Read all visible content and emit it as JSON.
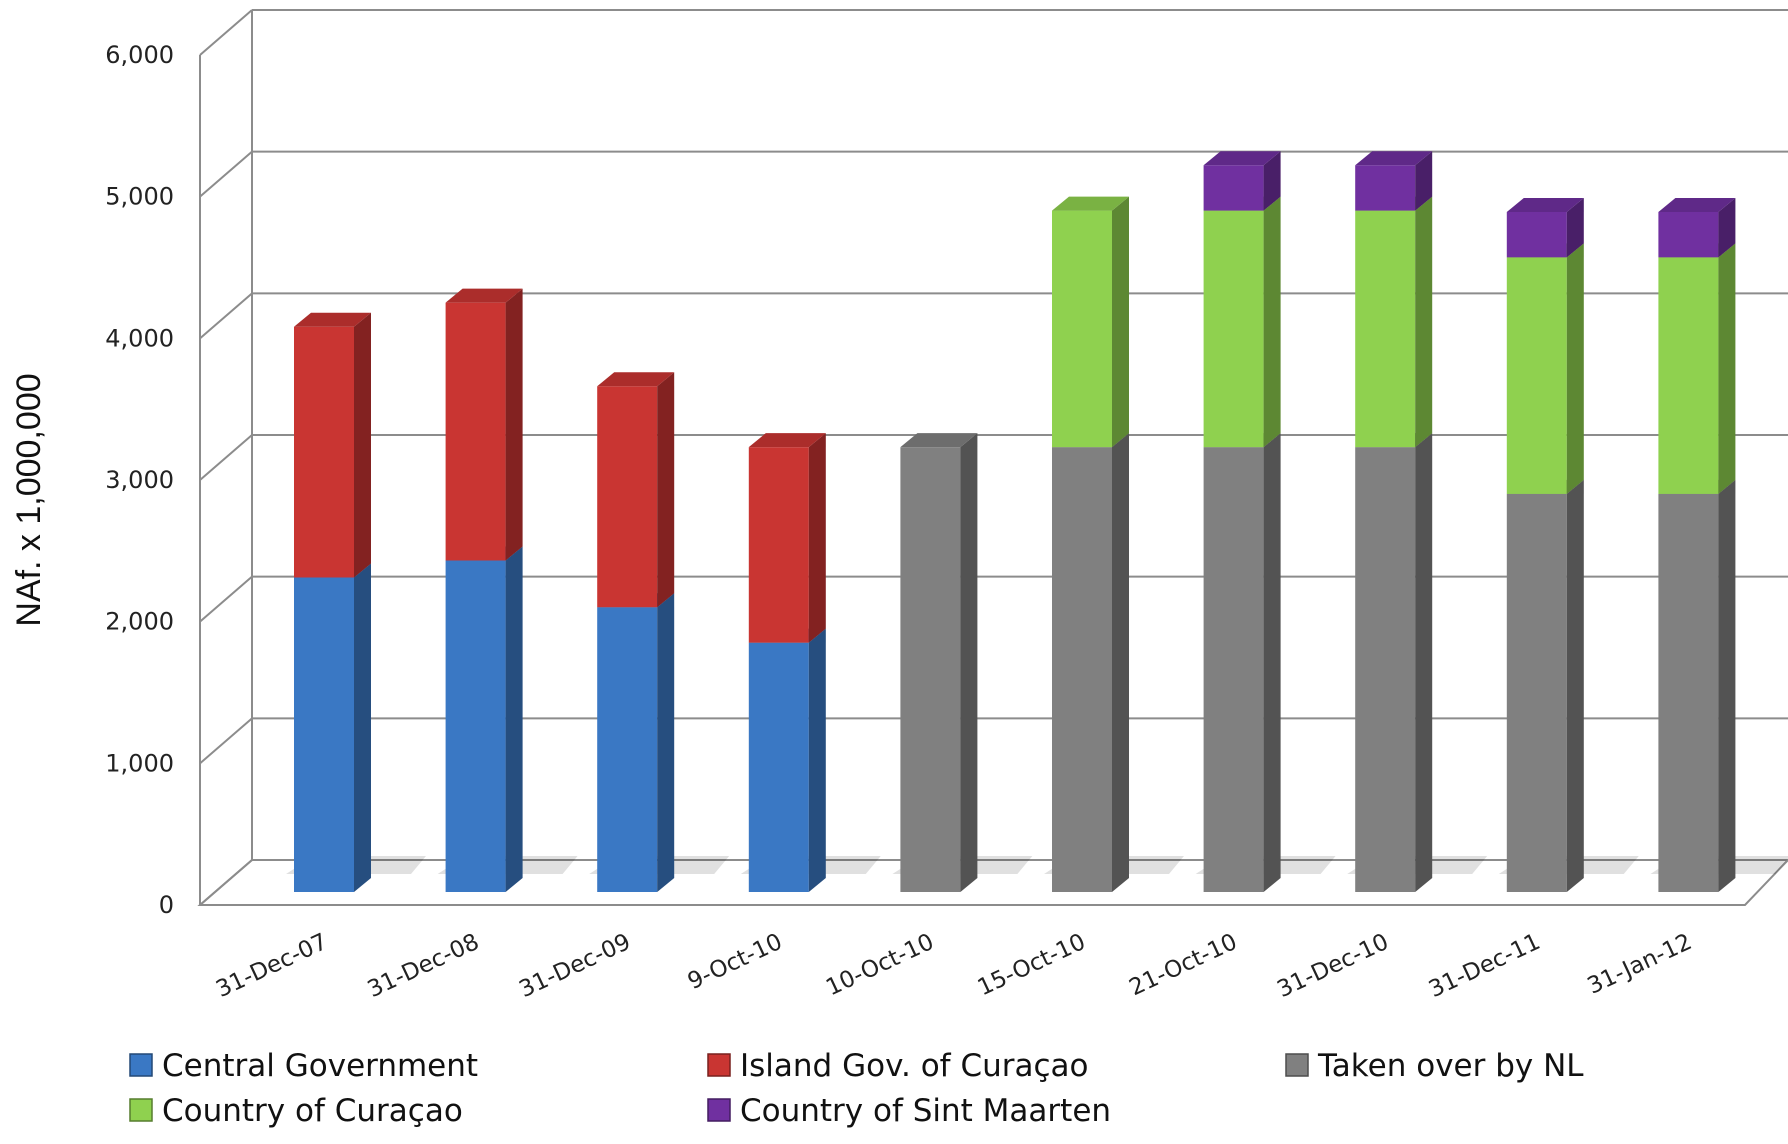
{
  "chart_data": {
    "type": "bar",
    "stacked": true,
    "three_d": true,
    "title": "",
    "xlabel": "",
    "ylabel": "NAf. x 1,000,000",
    "ylim": [
      0,
      6000
    ],
    "y_ticks": [
      "0",
      "1,000",
      "2,000",
      "3,000",
      "4,000",
      "5,000",
      "6,000"
    ],
    "grid": true,
    "legend_position": "bottom",
    "categories": [
      "31-Dec-07",
      "31-Dec-08",
      "31-Dec-09",
      "9-Oct-10",
      "10-Oct-10",
      "15-Oct-10",
      "21-Oct-10",
      "31-Dec-10",
      "31-Dec-11",
      "31-Jan-12"
    ],
    "series": [
      {
        "name": "Central Government",
        "color": "#3a78c4",
        "values": [
          2220,
          2340,
          2010,
          1760,
          0,
          0,
          0,
          0,
          0,
          0
        ]
      },
      {
        "name": " Island Gov. of Curaçao",
        "color": "#c93532",
        "values": [
          1770,
          1820,
          1560,
          1380,
          0,
          0,
          0,
          0,
          0,
          0
        ]
      },
      {
        "name": "Taken over by NL",
        "color": "#808080",
        "values": [
          0,
          0,
          0,
          0,
          3140,
          3140,
          3140,
          3140,
          2810,
          2810
        ]
      },
      {
        "name": "Country of Curaçao",
        "color": "#8fd14f",
        "values": [
          0,
          0,
          0,
          0,
          0,
          1670,
          1670,
          1670,
          1670,
          1670
        ]
      },
      {
        "name": "Country of Sint Maarten",
        "color": "#7030a0",
        "values": [
          0,
          0,
          0,
          0,
          0,
          0,
          320,
          320,
          320,
          320
        ]
      }
    ]
  }
}
